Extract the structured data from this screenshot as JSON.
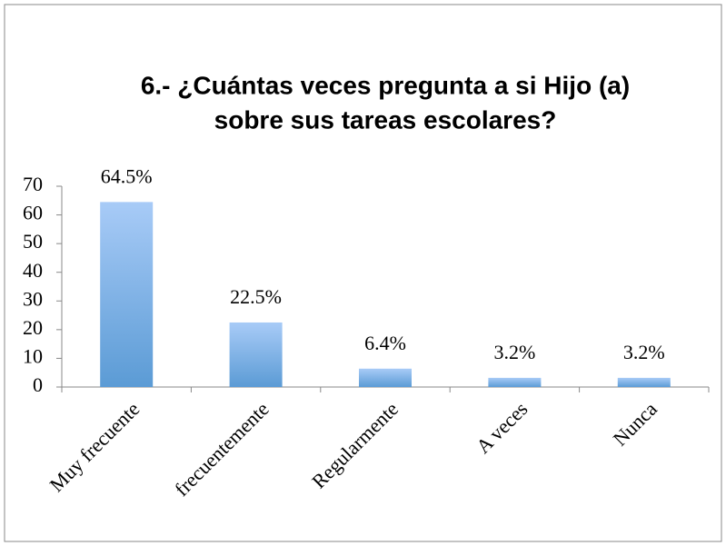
{
  "chart_data": {
    "type": "bar",
    "title": [
      "6.- ¿Cuántas veces pregunta a si Hijo (a)",
      "sobre sus tareas escolares?"
    ],
    "categories": [
      "Muy frecuente",
      "frecuentemente",
      "Regularmente",
      "A veces",
      "Nunca"
    ],
    "values": [
      64.5,
      22.5,
      6.4,
      3.2,
      3.2
    ],
    "value_labels": [
      "64.5%",
      "22.5%",
      "6.4%",
      "3.2%",
      "3.2%"
    ],
    "color": "#5b9bd5",
    "ylim": [
      0,
      70
    ],
    "yticks": [
      0,
      10,
      20,
      30,
      40,
      50,
      60,
      70
    ],
    "grid": false
  }
}
